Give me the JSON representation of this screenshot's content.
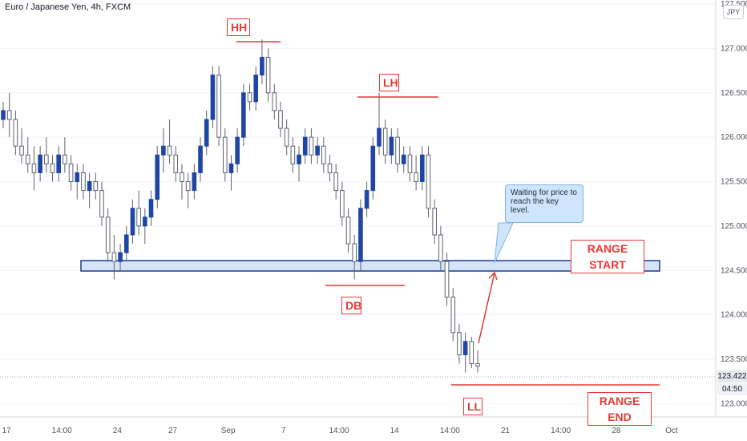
{
  "chart_data": {
    "type": "candlestick",
    "title": "Euro / Japanese Yen, 4h, FXCM",
    "currency": "JPY",
    "ylim": [
      122.85,
      127.5
    ],
    "y_ticks": [
      "127.500",
      "127.000",
      "126.500",
      "126.000",
      "125.500",
      "125.000",
      "124.500",
      "124.000",
      "123.500",
      "123.000"
    ],
    "x_ticks": [
      "17",
      "14:00",
      "24",
      "27",
      "Sep",
      "7",
      "14:00",
      "14",
      "14:00",
      "21",
      "14:00",
      "28",
      "Oct"
    ],
    "last_price": "123.422",
    "countdown": "04:50",
    "candles": [
      [
        126.2,
        126.4,
        126.1,
        126.3
      ],
      [
        126.3,
        126.5,
        126.0,
        126.2
      ],
      [
        126.2,
        126.3,
        125.8,
        125.9
      ],
      [
        125.9,
        126.1,
        125.7,
        125.8
      ],
      [
        125.8,
        126.0,
        125.6,
        125.7
      ],
      [
        125.7,
        125.9,
        125.4,
        125.6
      ],
      [
        125.6,
        125.9,
        125.5,
        125.8
      ],
      [
        125.8,
        126.0,
        125.6,
        125.7
      ],
      [
        125.7,
        125.8,
        125.5,
        125.6
      ],
      [
        125.6,
        125.9,
        125.5,
        125.8
      ],
      [
        125.8,
        126.0,
        125.6,
        125.7
      ],
      [
        125.7,
        125.8,
        125.4,
        125.5
      ],
      [
        125.5,
        125.7,
        125.3,
        125.6
      ],
      [
        125.6,
        125.7,
        125.3,
        125.4
      ],
      [
        125.4,
        125.6,
        125.2,
        125.5
      ],
      [
        125.5,
        125.6,
        125.3,
        125.4
      ],
      [
        125.4,
        125.5,
        125.0,
        125.1
      ],
      [
        125.1,
        125.2,
        124.6,
        124.7
      ],
      [
        124.7,
        124.9,
        124.4,
        124.6
      ],
      [
        124.6,
        124.8,
        124.5,
        124.7
      ],
      [
        124.7,
        125.0,
        124.6,
        124.9
      ],
      [
        124.9,
        125.3,
        124.8,
        125.2
      ],
      [
        125.2,
        125.4,
        124.9,
        125.0
      ],
      [
        125.0,
        125.2,
        124.8,
        125.1
      ],
      [
        125.1,
        125.4,
        125.0,
        125.3
      ],
      [
        125.3,
        125.9,
        125.2,
        125.8
      ],
      [
        125.8,
        126.1,
        125.6,
        125.9
      ],
      [
        125.9,
        126.2,
        125.7,
        125.8
      ],
      [
        125.8,
        125.9,
        125.5,
        125.6
      ],
      [
        125.6,
        125.7,
        125.3,
        125.5
      ],
      [
        125.5,
        125.6,
        125.2,
        125.4
      ],
      [
        125.4,
        125.7,
        125.3,
        125.6
      ],
      [
        125.6,
        126.0,
        125.5,
        125.9
      ],
      [
        125.9,
        126.3,
        125.8,
        126.2
      ],
      [
        126.2,
        126.8,
        126.1,
        126.7
      ],
      [
        126.7,
        126.8,
        125.9,
        126.0
      ],
      [
        126.0,
        126.1,
        125.5,
        125.6
      ],
      [
        125.6,
        125.8,
        125.4,
        125.7
      ],
      [
        125.7,
        126.1,
        125.6,
        126.0
      ],
      [
        126.0,
        126.6,
        125.9,
        126.5
      ],
      [
        126.5,
        126.6,
        126.3,
        126.4
      ],
      [
        126.4,
        126.8,
        126.3,
        126.7
      ],
      [
        126.7,
        127.1,
        126.6,
        126.9
      ],
      [
        126.9,
        127.0,
        126.4,
        126.5
      ],
      [
        126.5,
        126.6,
        126.2,
        126.3
      ],
      [
        126.3,
        126.4,
        126.0,
        126.1
      ],
      [
        126.1,
        126.2,
        125.8,
        125.9
      ],
      [
        125.9,
        126.0,
        125.6,
        125.7
      ],
      [
        125.7,
        125.9,
        125.5,
        125.8
      ],
      [
        125.8,
        126.1,
        125.7,
        126.0
      ],
      [
        126.0,
        126.1,
        125.7,
        125.8
      ],
      [
        125.8,
        126.0,
        125.7,
        125.9
      ],
      [
        125.9,
        126.0,
        125.6,
        125.7
      ],
      [
        125.7,
        125.8,
        125.5,
        125.6
      ],
      [
        125.6,
        125.7,
        125.3,
        125.4
      ],
      [
        125.4,
        125.5,
        125.0,
        125.1
      ],
      [
        125.1,
        125.2,
        124.7,
        124.8
      ],
      [
        124.8,
        124.9,
        124.4,
        124.6
      ],
      [
        124.6,
        125.3,
        124.5,
        125.2
      ],
      [
        125.2,
        125.5,
        125.1,
        125.4
      ],
      [
        125.4,
        126.0,
        125.3,
        125.9
      ],
      [
        125.9,
        126.5,
        125.8,
        126.1
      ],
      [
        126.1,
        126.2,
        125.7,
        125.8
      ],
      [
        125.8,
        126.1,
        125.7,
        126.0
      ],
      [
        126.0,
        126.1,
        125.6,
        125.7
      ],
      [
        125.7,
        125.9,
        125.6,
        125.8
      ],
      [
        125.8,
        125.9,
        125.5,
        125.6
      ],
      [
        125.6,
        125.8,
        125.4,
        125.5
      ],
      [
        125.5,
        125.9,
        125.4,
        125.8
      ],
      [
        125.8,
        125.9,
        125.1,
        125.2
      ],
      [
        125.2,
        125.3,
        124.8,
        124.9
      ],
      [
        124.9,
        125.0,
        124.5,
        124.6
      ],
      [
        124.6,
        124.7,
        124.1,
        124.2
      ],
      [
        124.2,
        124.3,
        123.7,
        123.8
      ],
      [
        123.8,
        123.9,
        123.45,
        123.55
      ],
      [
        123.55,
        123.8,
        123.35,
        123.7
      ],
      [
        123.7,
        123.75,
        123.4,
        123.45
      ],
      [
        123.45,
        123.6,
        123.35,
        123.422
      ]
    ]
  },
  "annotations": {
    "hh": "HH",
    "lh": "LH",
    "db": "DB",
    "ll": "LL",
    "range_start": "RANGE START",
    "range_end": "RANGE END",
    "callout": "Waiting for price to reach the key level."
  },
  "colors": {
    "bull": "#2046a5",
    "bear": "#ffffff",
    "wick": "#5d6270",
    "annotation": "#e53935",
    "zone_fill": "#d6e3f7",
    "zone_border": "#1b3f8b"
  }
}
